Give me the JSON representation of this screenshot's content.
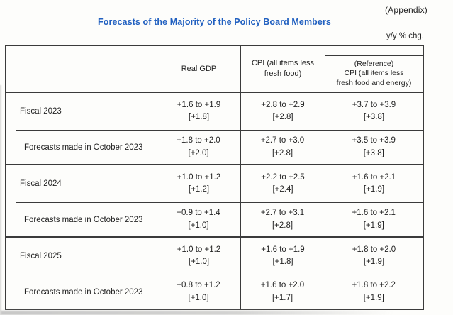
{
  "page": {
    "appendix_label": "(Appendix)",
    "title": "Forecasts of the Majority of the Policy Board Members",
    "unit_note": "y/y % chg."
  },
  "colors": {
    "title_blue": "#2160c0",
    "border": "#3b3b3b",
    "text": "#232323"
  },
  "table": {
    "header": {
      "col_gdp": "Real GDP",
      "col_cpi": "CPI (all items less\nfresh food)",
      "col_cpi_ref": "(Reference)\nCPI (all items less\nfresh food and energy)"
    },
    "groups": [
      {
        "fiscal_label": "Fiscal 2023",
        "fiscal_values": [
          "+1.6 to +1.9\n[+1.8]",
          "+2.8 to +2.9\n[+2.8]",
          "+3.7 to +3.9\n[+3.8]"
        ],
        "october_label": "Forecasts made in October 2023",
        "october_values": [
          "+1.8 to +2.0\n[+2.0]",
          "+2.7 to +3.0\n[+2.8]",
          "+3.5 to +3.9\n[+3.8]"
        ]
      },
      {
        "fiscal_label": "Fiscal 2024",
        "fiscal_values": [
          "+1.0 to +1.2\n[+1.2]",
          "+2.2 to +2.5\n[+2.4]",
          "+1.6 to +2.1\n[+1.9]"
        ],
        "october_label": "Forecasts made in October 2023",
        "october_values": [
          "+0.9 to +1.4\n[+1.0]",
          "+2.7 to +3.1\n[+2.8]",
          "+1.6 to +2.1\n[+1.9]"
        ]
      },
      {
        "fiscal_label": "Fiscal 2025",
        "fiscal_values": [
          "+1.0 to +1.2\n[+1.0]",
          "+1.6 to +1.9\n[+1.8]",
          "+1.8 to +2.0\n[+1.9]"
        ],
        "october_label": "Forecasts made in October 2023",
        "october_values": [
          "+0.8 to +1.2\n[+1.0]",
          "+1.6 to +2.0\n[+1.7]",
          "+1.8 to +2.2\n[+1.9]"
        ]
      }
    ]
  }
}
